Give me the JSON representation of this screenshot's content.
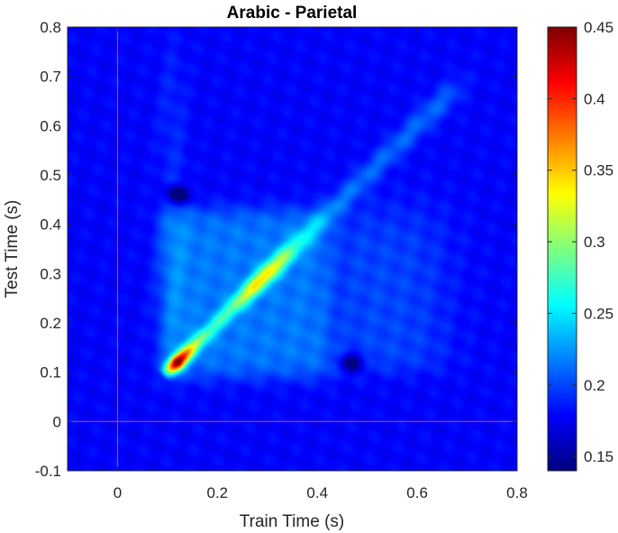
{
  "chart_data": {
    "type": "heatmap",
    "title": "Arabic - Parietal",
    "xlabel": "Train Time (s)",
    "ylabel": "Test Time (s)",
    "xlim": [
      -0.1,
      0.8
    ],
    "ylim": [
      -0.1,
      0.8
    ],
    "x_ticks": [
      0,
      0.2,
      0.4,
      0.6,
      0.8
    ],
    "x_tick_labels": [
      "0",
      "0.2",
      "0.4",
      "0.6",
      "0.8"
    ],
    "y_ticks": [
      -0.1,
      0,
      0.1,
      0.2,
      0.3,
      0.4,
      0.5,
      0.6,
      0.7,
      0.8
    ],
    "y_tick_labels": [
      "-0.1",
      "0",
      "0.1",
      "0.2",
      "0.3",
      "0.4",
      "0.5",
      "0.6",
      "0.7",
      "0.8"
    ],
    "colormap": "jet",
    "clim": [
      0.14,
      0.45
    ],
    "colorbar_ticks": [
      0.15,
      0.2,
      0.25,
      0.3,
      0.35,
      0.4,
      0.45
    ],
    "colorbar_tick_labels": [
      "0.15",
      "0.2",
      "0.25",
      "0.3",
      "0.35",
      "0.4",
      "0.45"
    ],
    "reference_lines": {
      "x": 0,
      "y": 0,
      "color": "#d63a5c"
    },
    "baseline_value": 0.178,
    "features": {
      "diagonal": {
        "from_time": 0.09,
        "to_time": 0.68,
        "peak_time": 0.12,
        "peak_value": 0.45,
        "secondary_peak_time": 0.29,
        "secondary_peak_value": 0.34,
        "end_value": 0.21
      },
      "generalization_square": {
        "t_min": 0.09,
        "t_max": 0.43,
        "value": 0.215
      },
      "extended_region": {
        "train_range": [
          0.43,
          0.65
        ],
        "test_range": [
          0.1,
          0.43
        ],
        "value": 0.2
      },
      "low_spots": [
        {
          "train": 0.12,
          "test": 0.46,
          "value": 0.15
        },
        {
          "train": 0.47,
          "test": 0.12,
          "value": 0.155
        }
      ]
    }
  }
}
